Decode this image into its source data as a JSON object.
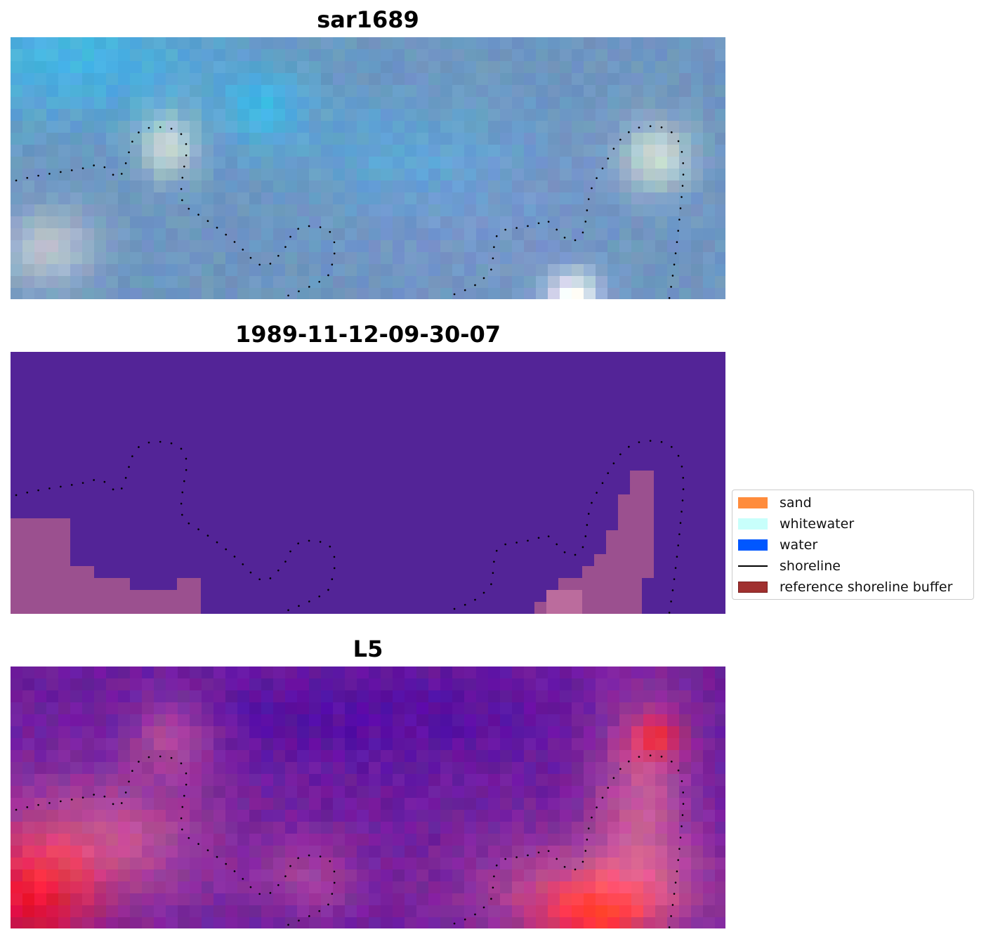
{
  "panels": [
    {
      "title": "sar1689",
      "variant": "rgb"
    },
    {
      "title": "1989-11-12-09-30-07",
      "variant": "classified"
    },
    {
      "title": "L5",
      "variant": "mndwi"
    }
  ],
  "legend": {
    "items": [
      {
        "label": "sand",
        "kind": "patch",
        "color": "#ff8c3c"
      },
      {
        "label": "whitewater",
        "kind": "patch",
        "color": "#c8fffb"
      },
      {
        "label": "water",
        "kind": "patch",
        "color": "#0057ff"
      },
      {
        "label": "shoreline",
        "kind": "line",
        "color": "#000000"
      },
      {
        "label": "reference shoreline buffer",
        "kind": "patch",
        "color": "#a0302f",
        "edge": "#7a1f1f"
      }
    ]
  },
  "colors": {
    "classified_background": "#532497",
    "buffer_overlay": "#b35f8c",
    "shoreline_dots": "#000000"
  }
}
